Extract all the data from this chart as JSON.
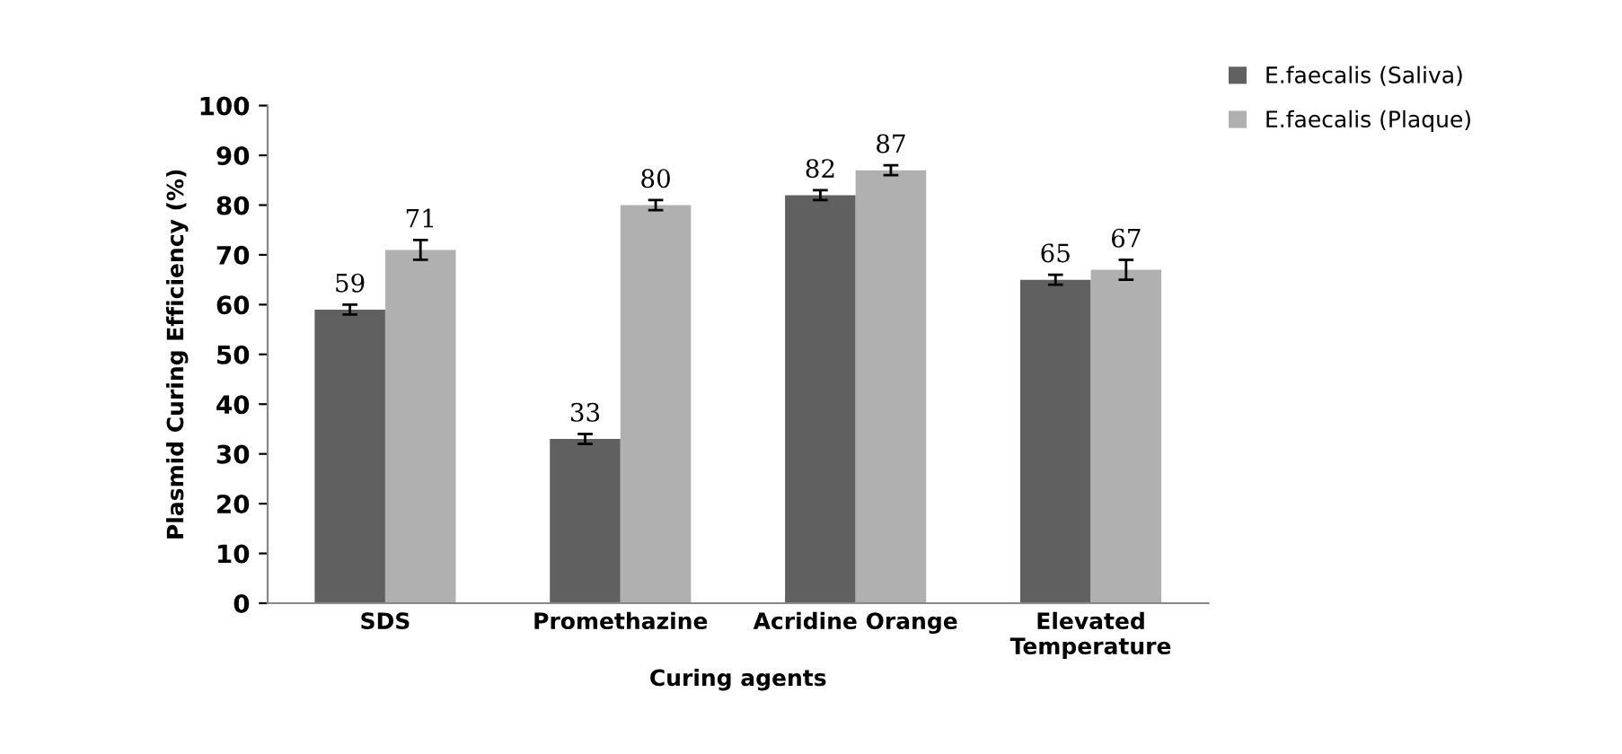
{
  "chart_data": {
    "type": "bar",
    "xlabel": "Curing agents",
    "ylabel": "Plasmid Curing Efficiency (%)",
    "categories": [
      "SDS",
      "Promethazine",
      "Acridine Orange",
      "Elevated\nTemperature"
    ],
    "series": [
      {
        "name": "E.faecalis (Saliva)",
        "color": "#606060",
        "values": [
          59,
          33,
          82,
          65
        ],
        "errors": [
          1,
          1,
          1,
          1
        ]
      },
      {
        "name": "E.faecalis (Plaque)",
        "color": "#b0b0b0",
        "values": [
          71,
          80,
          87,
          67
        ],
        "errors": [
          2,
          1,
          1,
          2
        ]
      }
    ],
    "ylim": [
      0,
      100
    ],
    "yticks": [
      0,
      10,
      20,
      30,
      40,
      50,
      60,
      70,
      80,
      90,
      100
    ],
    "data_labels": true,
    "legend": "top right",
    "grid": false
  }
}
